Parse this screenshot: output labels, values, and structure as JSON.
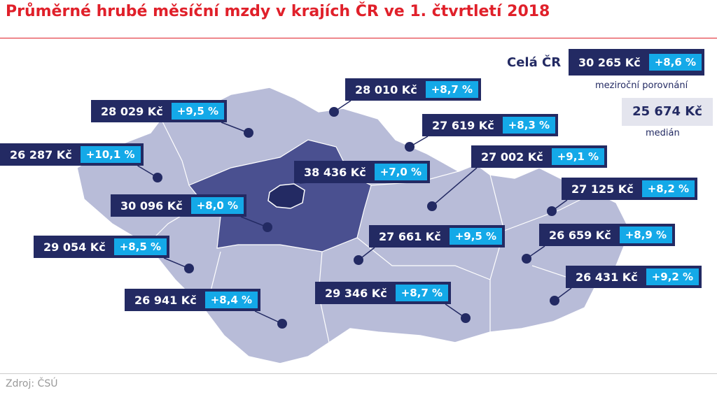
{
  "header": {
    "title": "Průměrné hrubé měsíční mzdy v krajích ČR ve 1. čtvrtletí 2018"
  },
  "summary": {
    "label": "Celá ČR",
    "value": "30 265 Kč",
    "change": "+8,6 %",
    "change_note": "meziroční porovnání",
    "median_value": "25 674 Kč",
    "median_label": "medián"
  },
  "regions": [
    {
      "value": "28 029 Kč",
      "change": "+9,5 %"
    },
    {
      "value": "28 010 Kč",
      "change": "+8,7 %"
    },
    {
      "value": "26 287 Kč",
      "change": "+10,1 %"
    },
    {
      "value": "27 619 Kč",
      "change": "+8,3 %"
    },
    {
      "value": "38 436 Kč",
      "change": "+7,0 %"
    },
    {
      "value": "27 002 Kč",
      "change": "+9,1 %"
    },
    {
      "value": "30 096 Kč",
      "change": "+8,0 %"
    },
    {
      "value": "27 125 Kč",
      "change": "+8,2 %"
    },
    {
      "value": "29 054 Kč",
      "change": "+8,5 %"
    },
    {
      "value": "27 661 Kč",
      "change": "+9,5 %"
    },
    {
      "value": "26 659 Kč",
      "change": "+8,9 %"
    },
    {
      "value": "26 431 Kč",
      "change": "+9,2 %"
    },
    {
      "value": "26 941 Kč",
      "change": "+8,4 %"
    },
    {
      "value": "29 346 Kč",
      "change": "+8,7 %"
    }
  ],
  "footer": {
    "source": "Zdroj: ČSÚ"
  }
}
